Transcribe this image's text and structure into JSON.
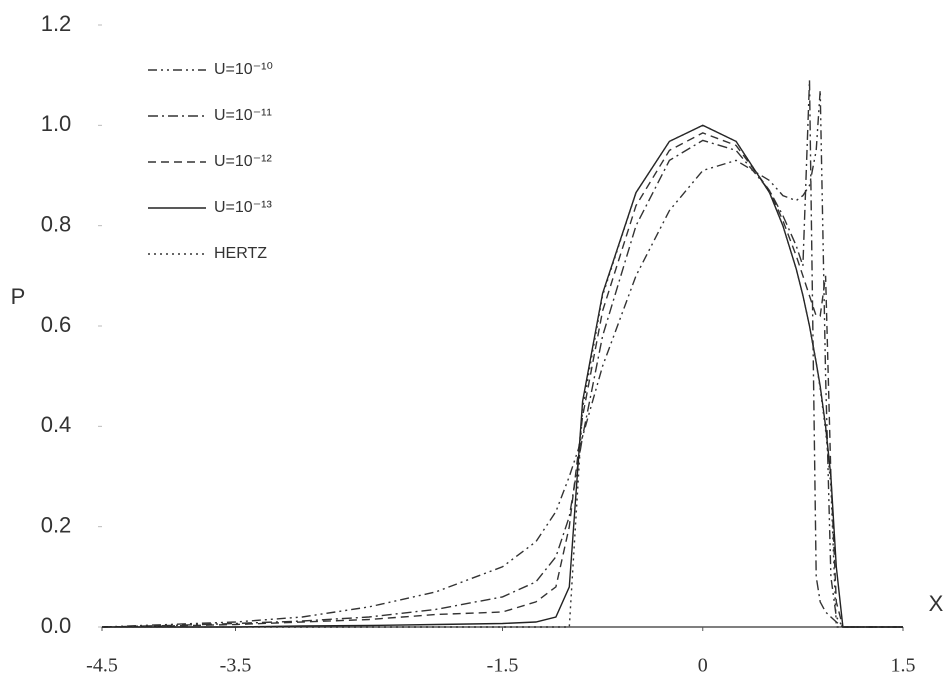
{
  "chart_data": {
    "type": "line",
    "x_label": "X",
    "y_label": "P",
    "x": [
      -4.5,
      -4,
      -3.5,
      -3,
      -2.5,
      -2,
      -1.5,
      -1.25,
      -1.1,
      -1,
      -0.9,
      -0.75,
      -0.5,
      -0.25,
      0,
      0.25,
      0.5,
      0.6,
      0.7,
      0.75,
      0.8,
      0.85,
      0.88,
      0.92,
      0.96,
      1.0,
      1.05,
      1.1,
      1.5
    ],
    "series": [
      {
        "name": "U=10⁻¹⁰",
        "color": "#333333",
        "dash": "9,4,2,4,2,4",
        "values": [
          0,
          0.005,
          0.01,
          0.02,
          0.04,
          0.07,
          0.12,
          0.17,
          0.23,
          0.3,
          0.38,
          0.52,
          0.7,
          0.83,
          0.91,
          0.93,
          0.89,
          0.86,
          0.85,
          0.86,
          0.88,
          0.95,
          1.07,
          0.5,
          0.1,
          0.02,
          0,
          0,
          0
        ]
      },
      {
        "name": "U=10⁻¹¹",
        "color": "#333333",
        "dash": "10,4,2,4",
        "values": [
          0,
          0.003,
          0.007,
          0.012,
          0.02,
          0.035,
          0.06,
          0.09,
          0.14,
          0.22,
          0.38,
          0.58,
          0.8,
          0.93,
          0.97,
          0.95,
          0.87,
          0.82,
          0.76,
          0.72,
          1.09,
          0.1,
          0.05,
          0.03,
          0.02,
          0.01,
          0,
          0,
          0
        ]
      },
      {
        "name": "U=10⁻¹²",
        "color": "#333333",
        "dash": "8,5",
        "values": [
          0,
          0.002,
          0.005,
          0.01,
          0.015,
          0.025,
          0.03,
          0.05,
          0.08,
          0.2,
          0.42,
          0.63,
          0.84,
          0.95,
          0.985,
          0.96,
          0.87,
          0.81,
          0.74,
          0.7,
          0.66,
          0.62,
          0.62,
          0.7,
          0.3,
          0.05,
          0,
          0,
          0
        ]
      },
      {
        "name": "U=10⁻¹³",
        "color": "#222222",
        "dash": "none",
        "values": [
          0,
          0,
          0,
          0.002,
          0.003,
          0.005,
          0.007,
          0.01,
          0.02,
          0.08,
          0.45,
          0.665,
          0.866,
          0.968,
          1.0,
          0.968,
          0.866,
          0.8,
          0.714,
          0.661,
          0.6,
          0.527,
          0.48,
          0.4,
          0.3,
          0.12,
          0,
          0,
          0
        ]
      },
      {
        "name": "HERTZ",
        "color": "#333333",
        "dash": "2,4",
        "values": [
          0,
          0,
          0,
          0,
          0,
          0,
          0,
          0,
          0,
          0,
          0.436,
          0.661,
          0.866,
          0.968,
          1,
          0.968,
          0.866,
          0.8,
          0.714,
          0.661,
          0.6,
          0.527,
          0.475,
          0.392,
          0.28,
          0,
          0,
          0,
          0
        ]
      }
    ],
    "xlim": [
      -4.5,
      1.5
    ],
    "xticks": [
      -4.5,
      -3.5,
      -1.5,
      0,
      1.5
    ],
    "ylim": [
      0,
      1.2
    ],
    "yticks": [
      {
        "value": 0,
        "label": "0.0"
      },
      0.2,
      0.4,
      0.6,
      0.8,
      {
        "value": 1,
        "label": "1.0"
      },
      1.2
    ],
    "grid": false,
    "legend": "upper-left"
  }
}
